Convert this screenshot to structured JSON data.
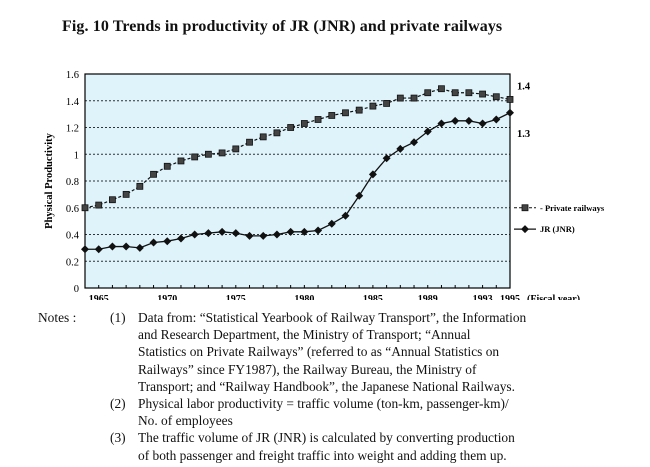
{
  "chart_data": {
    "type": "line",
    "title": "Fig. 10  Trends in productivity of JR (JNR) and private railways",
    "ylabel": "Physical Productivity",
    "xlabel": "(Fiscal year)",
    "ylim": [
      0,
      1.6
    ],
    "y_ticks": [
      "0",
      "0.2",
      "0.4",
      "0.6",
      "0.8",
      "1",
      "1.2",
      "1.4",
      "1.6"
    ],
    "x_tick_labels": [
      "1965",
      "1970",
      "1975",
      "1980",
      "1985",
      "1989",
      "1993",
      "1995"
    ],
    "grid": "horizontal dotted",
    "right_labels": [
      "1.4",
      "1.3"
    ],
    "x": [
      1964,
      1965,
      1966,
      1967,
      1968,
      1969,
      1970,
      1971,
      1972,
      1973,
      1974,
      1975,
      1976,
      1977,
      1978,
      1979,
      1980,
      1981,
      1982,
      1983,
      1984,
      1985,
      1986,
      1987,
      1988,
      1989,
      1990,
      1991,
      1992,
      1993,
      1994,
      1995
    ],
    "series": [
      {
        "name": "Private railways",
        "marker": "square",
        "values": [
          0.6,
          0.62,
          0.66,
          0.7,
          0.76,
          0.85,
          0.91,
          0.95,
          0.98,
          1.0,
          1.01,
          1.04,
          1.09,
          1.13,
          1.16,
          1.2,
          1.23,
          1.26,
          1.29,
          1.31,
          1.33,
          1.36,
          1.38,
          1.42,
          1.42,
          1.46,
          1.49,
          1.46,
          1.46,
          1.45,
          1.43,
          1.41
        ]
      },
      {
        "name": "JR (JNR)",
        "marker": "diamond",
        "values": [
          0.29,
          0.29,
          0.31,
          0.31,
          0.3,
          0.34,
          0.35,
          0.37,
          0.4,
          0.41,
          0.42,
          0.41,
          0.39,
          0.39,
          0.4,
          0.42,
          0.42,
          0.43,
          0.48,
          0.54,
          0.69,
          0.85,
          0.97,
          1.04,
          1.09,
          1.17,
          1.23,
          1.25,
          1.25,
          1.23,
          1.26,
          1.31
        ]
      }
    ]
  },
  "notes": {
    "heading": "Notes :",
    "items": [
      {
        "num": "(1)",
        "lines": [
          "Data from: “Statistical Yearbook of Railway Transport”, the Information",
          "and Research Department, the Ministry of Transport; “Annual",
          "Statistics on Private Railways” (referred to as “Annual Statistics on",
          "Railways” since FY1987), the Railway Bureau, the Ministry of",
          "Transport; and “Railway Handbook”, the Japanese National Railways."
        ]
      },
      {
        "num": "(2)",
        "lines": [
          "Physical labor productivity = traffic volume (ton-km, passenger-km)/",
          "No. of employees"
        ]
      },
      {
        "num": "(3)",
        "lines": [
          "The traffic volume of JR (JNR) is calculated by converting production",
          "of both passenger and freight traffic into weight and adding them up."
        ]
      }
    ]
  },
  "colors": {
    "plot_background": "#dff3fb",
    "line": "#111111",
    "grid": "#333333"
  }
}
